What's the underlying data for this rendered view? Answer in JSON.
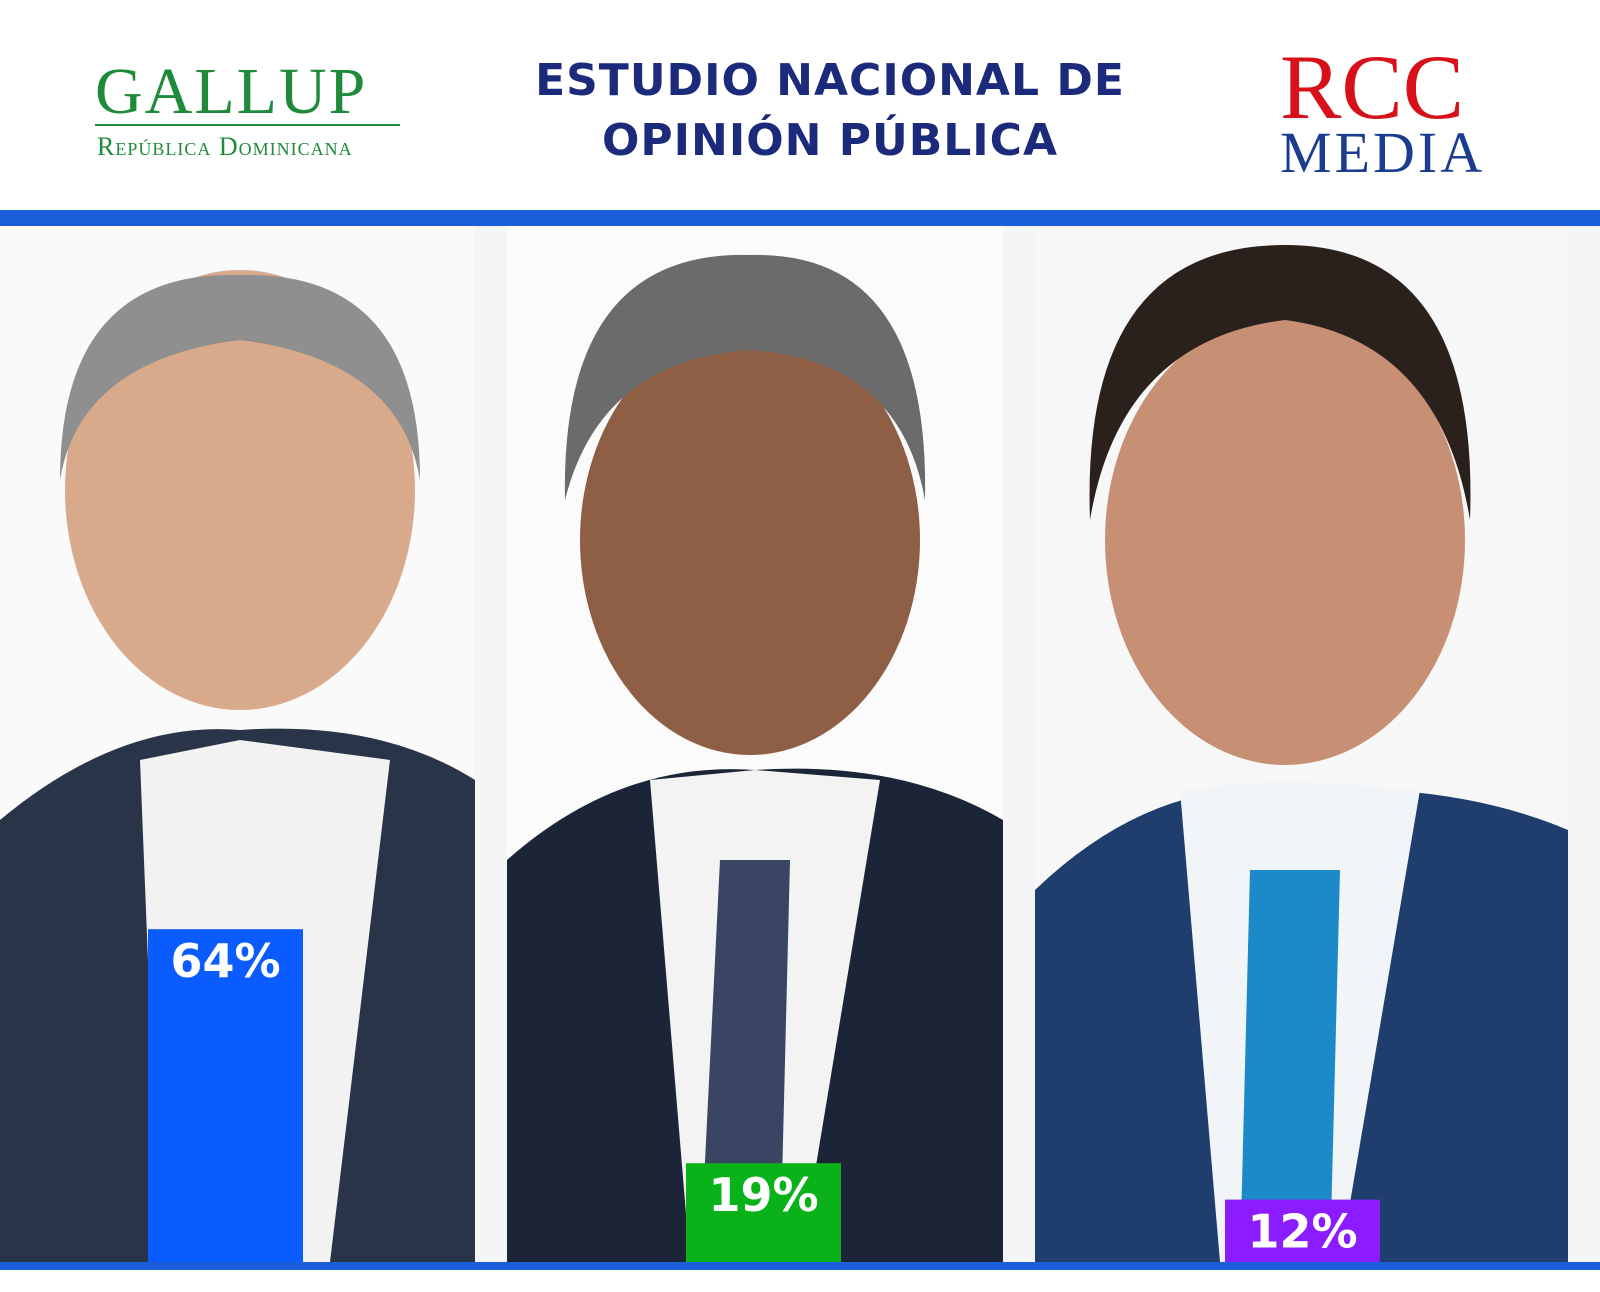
{
  "header": {
    "left_logo": {
      "name": "GALLUP",
      "subtitle": "República Dominicana"
    },
    "right_logo": {
      "name": "RCC",
      "subtitle": "MEDIA"
    }
  },
  "chart_data": {
    "type": "bar",
    "title_lines": [
      "ESTUDIO NACIONAL DE",
      "OPINIÓN PÚBLICA"
    ],
    "values": [
      64,
      19,
      12
    ],
    "value_labels": [
      "64%",
      "19%",
      "12%"
    ],
    "colors": [
      "#0a5cff",
      "#0ab21a",
      "#8a1cff"
    ]
  }
}
